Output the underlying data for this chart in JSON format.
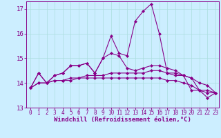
{
  "xlabel": "Windchill (Refroidissement éolien,°C)",
  "ylabel": "",
  "bg_color": "#cceeff",
  "line_color": "#880088",
  "grid_color": "#aadddd",
  "ylim": [
    13.0,
    17.3
  ],
  "xlim": [
    -0.5,
    23.4
  ],
  "yticks": [
    13,
    14,
    15,
    16,
    17
  ],
  "xticks": [
    0,
    1,
    2,
    3,
    4,
    5,
    6,
    7,
    8,
    9,
    10,
    11,
    12,
    13,
    14,
    15,
    16,
    17,
    18,
    19,
    20,
    21,
    22,
    23
  ],
  "series": [
    [
      13.8,
      14.4,
      14.0,
      14.3,
      14.4,
      14.7,
      14.7,
      14.8,
      14.4,
      15.0,
      15.9,
      15.2,
      15.1,
      16.5,
      16.9,
      17.2,
      16.0,
      14.4,
      14.3,
      14.3,
      13.7,
      13.7,
      13.4,
      13.6
    ],
    [
      13.8,
      14.4,
      14.0,
      14.3,
      14.4,
      14.7,
      14.7,
      14.8,
      14.4,
      15.0,
      15.2,
      15.1,
      14.6,
      14.5,
      14.6,
      14.7,
      14.7,
      14.6,
      14.5,
      14.3,
      14.2,
      13.7,
      13.7,
      13.6
    ],
    [
      13.8,
      14.0,
      14.0,
      14.1,
      14.1,
      14.2,
      14.2,
      14.3,
      14.3,
      14.3,
      14.4,
      14.4,
      14.4,
      14.4,
      14.4,
      14.5,
      14.5,
      14.4,
      14.4,
      14.3,
      14.2,
      14.0,
      13.9,
      13.6
    ],
    [
      13.8,
      14.0,
      14.0,
      14.1,
      14.1,
      14.1,
      14.2,
      14.2,
      14.2,
      14.2,
      14.2,
      14.2,
      14.2,
      14.2,
      14.2,
      14.2,
      14.2,
      14.1,
      14.1,
      14.0,
      13.9,
      13.7,
      13.6,
      13.6
    ]
  ],
  "marker": "D",
  "markersize": 2.0,
  "linewidth": 0.8,
  "tick_fontsize": 5.5,
  "xlabel_fontsize": 6.5,
  "ytick_fontsize": 6.5
}
